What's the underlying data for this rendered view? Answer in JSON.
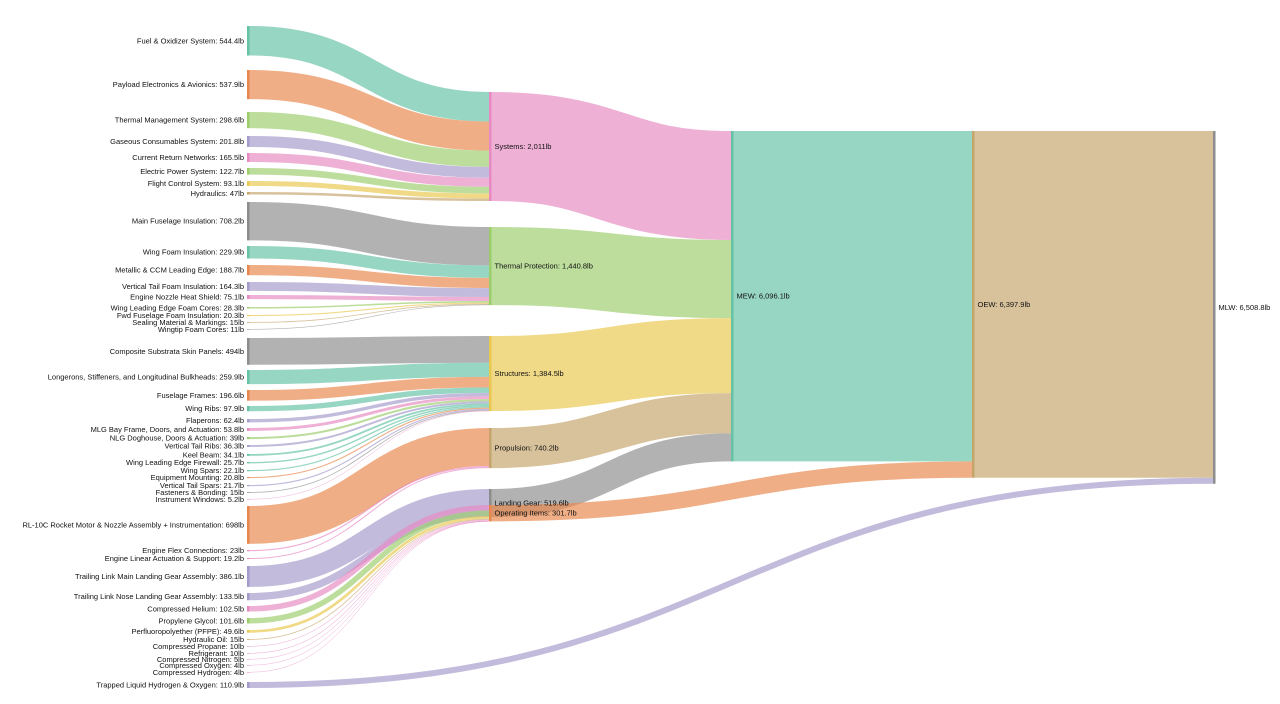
{
  "chart_data": {
    "type": "sankey",
    "unit": "lb",
    "title": "",
    "colors": {
      "teal": "#66c2a5",
      "orange": "#e8874d",
      "green": "#9ccd6c",
      "lavender": "#a59bcb",
      "pink": "#e78ac3",
      "yellow": "#e9c84f",
      "tan": "#c5a56b",
      "gray": "#8d8d8d"
    },
    "nodes": [
      {
        "id": "fuel",
        "label": "Fuel & Oxidizer System: 544.4lb",
        "value": 544.4,
        "color": "teal"
      },
      {
        "id": "payload",
        "label": "Payload Electronics & Avionics: 537.9lb",
        "value": 537.9,
        "color": "orange"
      },
      {
        "id": "thermal_mgmt",
        "label": "Thermal Management System: 298.6lb",
        "value": 298.6,
        "color": "green"
      },
      {
        "id": "gas_cons",
        "label": "Gaseous Consumables System: 201.8lb",
        "value": 201.8,
        "color": "lavender"
      },
      {
        "id": "crn",
        "label": "Current Return Networks: 165.5lb",
        "value": 165.5,
        "color": "pink"
      },
      {
        "id": "eps",
        "label": "Electric Power System: 122.7lb",
        "value": 122.7,
        "color": "green"
      },
      {
        "id": "fcs",
        "label": "Flight Control System: 93.1lb",
        "value": 93.1,
        "color": "yellow"
      },
      {
        "id": "hyd",
        "label": "Hydraulics: 47lb",
        "value": 47,
        "color": "tan"
      },
      {
        "id": "main_fus_ins",
        "label": "Main Fuselage Insulation: 708.2lb",
        "value": 708.2,
        "color": "gray"
      },
      {
        "id": "wing_foam",
        "label": "Wing Foam Insulation: 229.9lb",
        "value": 229.9,
        "color": "teal"
      },
      {
        "id": "ccm_le",
        "label": "Metallic & CCM Leading Edge: 188.7lb",
        "value": 188.7,
        "color": "orange"
      },
      {
        "id": "vt_foam",
        "label": "Vertical Tail Foam Insulation: 164.3lb",
        "value": 164.3,
        "color": "lavender"
      },
      {
        "id": "nozzle_shield",
        "label": "Engine Nozzle Heat Shield: 75.1lb",
        "value": 75.1,
        "color": "pink"
      },
      {
        "id": "wle_foam",
        "label": "Wing Leading Edge Foam Cores: 28.3lb",
        "value": 28.3,
        "color": "green"
      },
      {
        "id": "fwd_fus_foam",
        "label": "Fwd Fuselage Foam Insulation: 20.3lb",
        "value": 20.3,
        "color": "yellow"
      },
      {
        "id": "sealing",
        "label": "Sealing Material & Markings: 15lb",
        "value": 15,
        "color": "tan"
      },
      {
        "id": "wingtip_foam",
        "label": "Wingtip Foam Cores: 11lb",
        "value": 11,
        "color": "gray"
      },
      {
        "id": "skin_panels",
        "label": "Composite Substrata Skin Panels: 494lb",
        "value": 494,
        "color": "gray"
      },
      {
        "id": "longerons",
        "label": "Longerons, Stiffeners, and Longitudinal Bulkheads: 259.9lb",
        "value": 259.9,
        "color": "teal"
      },
      {
        "id": "fus_frames",
        "label": "Fuselage Frames: 196.6lb",
        "value": 196.6,
        "color": "orange"
      },
      {
        "id": "wing_ribs",
        "label": "Wing Ribs: 97.9lb",
        "value": 97.9,
        "color": "teal"
      },
      {
        "id": "flaperons",
        "label": "Flaperons: 62.4lb",
        "value": 62.4,
        "color": "lavender"
      },
      {
        "id": "mlg_bay",
        "label": "MLG Bay Frame, Doors, and Actuation: 53.8lb",
        "value": 53.8,
        "color": "pink"
      },
      {
        "id": "nlg_dog",
        "label": "NLG Doghouse, Doors & Actuation: 39lb",
        "value": 39,
        "color": "green"
      },
      {
        "id": "vt_ribs",
        "label": "Vertical Tail Ribs: 36.3lb",
        "value": 36.3,
        "color": "lavender"
      },
      {
        "id": "keel",
        "label": "Keel Beam: 34.1lb",
        "value": 34.1,
        "color": "teal"
      },
      {
        "id": "wle_firewall",
        "label": "Wing Leading Edge Firewall: 25.7lb",
        "value": 25.7,
        "color": "teal"
      },
      {
        "id": "wing_spars",
        "label": "Wing Spars: 22.1lb",
        "value": 22.1,
        "color": "teal"
      },
      {
        "id": "equip_mount",
        "label": "Equipment Mounting: 20.8lb",
        "value": 20.8,
        "color": "orange"
      },
      {
        "id": "vt_spars",
        "label": "Vertical Tail Spars: 21.7lb",
        "value": 21.7,
        "color": "lavender"
      },
      {
        "id": "fasteners",
        "label": "Fasteners & Bonding: 15lb",
        "value": 15,
        "color": "gray"
      },
      {
        "id": "windows",
        "label": "Instrument Windows: 5.2lb",
        "value": 5.2,
        "color": "pink"
      },
      {
        "id": "rl10c",
        "label": "RL-10C Rocket Motor & Nozzle Assembly + Instrumentation: 698lb",
        "value": 698,
        "color": "orange"
      },
      {
        "id": "flex_conn",
        "label": "Engine Flex Connections: 23lb",
        "value": 23,
        "color": "pink"
      },
      {
        "id": "lin_act",
        "label": "Engine Linear Actuation & Support: 19.2lb",
        "value": 19.2,
        "color": "pink"
      },
      {
        "id": "mlg",
        "label": "Trailing Link Main Landing Gear Assembly: 386.1lb",
        "value": 386.1,
        "color": "lavender"
      },
      {
        "id": "nlg",
        "label": "Trailing Link Nose Landing Gear Assembly: 133.5lb",
        "value": 133.5,
        "color": "lavender"
      },
      {
        "id": "he",
        "label": "Compressed Helium: 102.5lb",
        "value": 102.5,
        "color": "pink"
      },
      {
        "id": "glycol",
        "label": "Propylene Glycol: 101.6lb",
        "value": 101.6,
        "color": "green"
      },
      {
        "id": "pfpe",
        "label": "Perfluoropolyether (PFPE): 49.6lb",
        "value": 49.6,
        "color": "yellow"
      },
      {
        "id": "hyd_oil",
        "label": "Hydraulic Oil: 15lb",
        "value": 15,
        "color": "tan"
      },
      {
        "id": "propane",
        "label": "Compressed Propane: 10lb",
        "value": 10,
        "color": "pink"
      },
      {
        "id": "refrig",
        "label": "Refrigerant: 10lb",
        "value": 10,
        "color": "pink"
      },
      {
        "id": "n2",
        "label": "Compressed Nitrogen: 5lb",
        "value": 5,
        "color": "pink"
      },
      {
        "id": "o2",
        "label": "Compressed Oxygen: 4lb",
        "value": 4,
        "color": "pink"
      },
      {
        "id": "h2",
        "label": "Compressed Hydrogen: 4lb",
        "value": 4,
        "color": "pink"
      },
      {
        "id": "trapped",
        "label": "Trapped Liquid Hydrogen & Oxygen: 110.9lb",
        "value": 110.9,
        "color": "lavender"
      },
      {
        "id": "systems",
        "label": "Systems: 2,011lb",
        "value": 2011,
        "color": "pink"
      },
      {
        "id": "tps",
        "label": "Thermal Protection: 1,440.8lb",
        "value": 1440.8,
        "color": "green"
      },
      {
        "id": "structures",
        "label": "Structures: 1,384.5lb",
        "value": 1384.5,
        "color": "yellow"
      },
      {
        "id": "propulsion",
        "label": "Propulsion: 740.2lb",
        "value": 740.2,
        "color": "tan"
      },
      {
        "id": "landing",
        "label": "Landing Gear: 519.6lb",
        "value": 519.6,
        "color": "gray"
      },
      {
        "id": "op_items",
        "label": "Operating Items: 301.7lb",
        "value": 301.7,
        "color": "orange"
      },
      {
        "id": "mew",
        "label": "MEW: 6,096.1lb",
        "value": 6096.1,
        "color": "teal"
      },
      {
        "id": "oew",
        "label": "OEW: 6,397.9lb",
        "value": 6397.9,
        "color": "tan"
      },
      {
        "id": "mlw",
        "label": "MLW: 6,508.8lb",
        "value": 6508.8,
        "color": "gray"
      }
    ],
    "links": [
      {
        "source": "fuel",
        "target": "systems",
        "value": 544.4
      },
      {
        "source": "payload",
        "target": "systems",
        "value": 537.9
      },
      {
        "source": "thermal_mgmt",
        "target": "systems",
        "value": 298.6
      },
      {
        "source": "gas_cons",
        "target": "systems",
        "value": 201.8
      },
      {
        "source": "crn",
        "target": "systems",
        "value": 165.5
      },
      {
        "source": "eps",
        "target": "systems",
        "value": 122.7
      },
      {
        "source": "fcs",
        "target": "systems",
        "value": 93.1
      },
      {
        "source": "hyd",
        "target": "systems",
        "value": 47
      },
      {
        "source": "main_fus_ins",
        "target": "tps",
        "value": 708.2
      },
      {
        "source": "wing_foam",
        "target": "tps",
        "value": 229.9
      },
      {
        "source": "ccm_le",
        "target": "tps",
        "value": 188.7
      },
      {
        "source": "vt_foam",
        "target": "tps",
        "value": 164.3
      },
      {
        "source": "nozzle_shield",
        "target": "tps",
        "value": 75.1
      },
      {
        "source": "wle_foam",
        "target": "tps",
        "value": 28.3
      },
      {
        "source": "fwd_fus_foam",
        "target": "tps",
        "value": 20.3
      },
      {
        "source": "sealing",
        "target": "tps",
        "value": 15
      },
      {
        "source": "wingtip_foam",
        "target": "tps",
        "value": 11
      },
      {
        "source": "skin_panels",
        "target": "structures",
        "value": 494
      },
      {
        "source": "longerons",
        "target": "structures",
        "value": 259.9
      },
      {
        "source": "fus_frames",
        "target": "structures",
        "value": 196.6
      },
      {
        "source": "wing_ribs",
        "target": "structures",
        "value": 97.9
      },
      {
        "source": "flaperons",
        "target": "structures",
        "value": 62.4
      },
      {
        "source": "mlg_bay",
        "target": "structures",
        "value": 53.8
      },
      {
        "source": "nlg_dog",
        "target": "structures",
        "value": 39
      },
      {
        "source": "vt_ribs",
        "target": "structures",
        "value": 36.3
      },
      {
        "source": "keel",
        "target": "structures",
        "value": 34.1
      },
      {
        "source": "wle_firewall",
        "target": "structures",
        "value": 25.7
      },
      {
        "source": "wing_spars",
        "target": "structures",
        "value": 22.1
      },
      {
        "source": "equip_mount",
        "target": "structures",
        "value": 20.8
      },
      {
        "source": "vt_spars",
        "target": "structures",
        "value": 21.7
      },
      {
        "source": "fasteners",
        "target": "structures",
        "value": 15
      },
      {
        "source": "windows",
        "target": "structures",
        "value": 5.2
      },
      {
        "source": "rl10c",
        "target": "propulsion",
        "value": 698
      },
      {
        "source": "flex_conn",
        "target": "propulsion",
        "value": 23
      },
      {
        "source": "lin_act",
        "target": "propulsion",
        "value": 19.2
      },
      {
        "source": "mlg",
        "target": "landing",
        "value": 386.1
      },
      {
        "source": "nlg",
        "target": "landing",
        "value": 133.5
      },
      {
        "source": "he",
        "target": "op_items",
        "value": 102.5
      },
      {
        "source": "glycol",
        "target": "op_items",
        "value": 101.6
      },
      {
        "source": "pfpe",
        "target": "op_items",
        "value": 49.6
      },
      {
        "source": "hyd_oil",
        "target": "op_items",
        "value": 15
      },
      {
        "source": "propane",
        "target": "op_items",
        "value": 10
      },
      {
        "source": "refrig",
        "target": "op_items",
        "value": 10
      },
      {
        "source": "n2",
        "target": "op_items",
        "value": 5
      },
      {
        "source": "o2",
        "target": "op_items",
        "value": 4
      },
      {
        "source": "h2",
        "target": "op_items",
        "value": 4
      },
      {
        "source": "systems",
        "target": "mew",
        "value": 2011
      },
      {
        "source": "tps",
        "target": "mew",
        "value": 1440.8
      },
      {
        "source": "structures",
        "target": "mew",
        "value": 1384.5
      },
      {
        "source": "propulsion",
        "target": "mew",
        "value": 740.2
      },
      {
        "source": "landing",
        "target": "mew",
        "value": 519.6
      },
      {
        "source": "mew",
        "target": "oew",
        "value": 6096.1
      },
      {
        "source": "op_items",
        "target": "oew",
        "value": 301.7
      },
      {
        "source": "oew",
        "target": "mlw",
        "value": 6397.9
      },
      {
        "source": "trapped",
        "target": "mlw",
        "value": 110.9
      }
    ]
  }
}
